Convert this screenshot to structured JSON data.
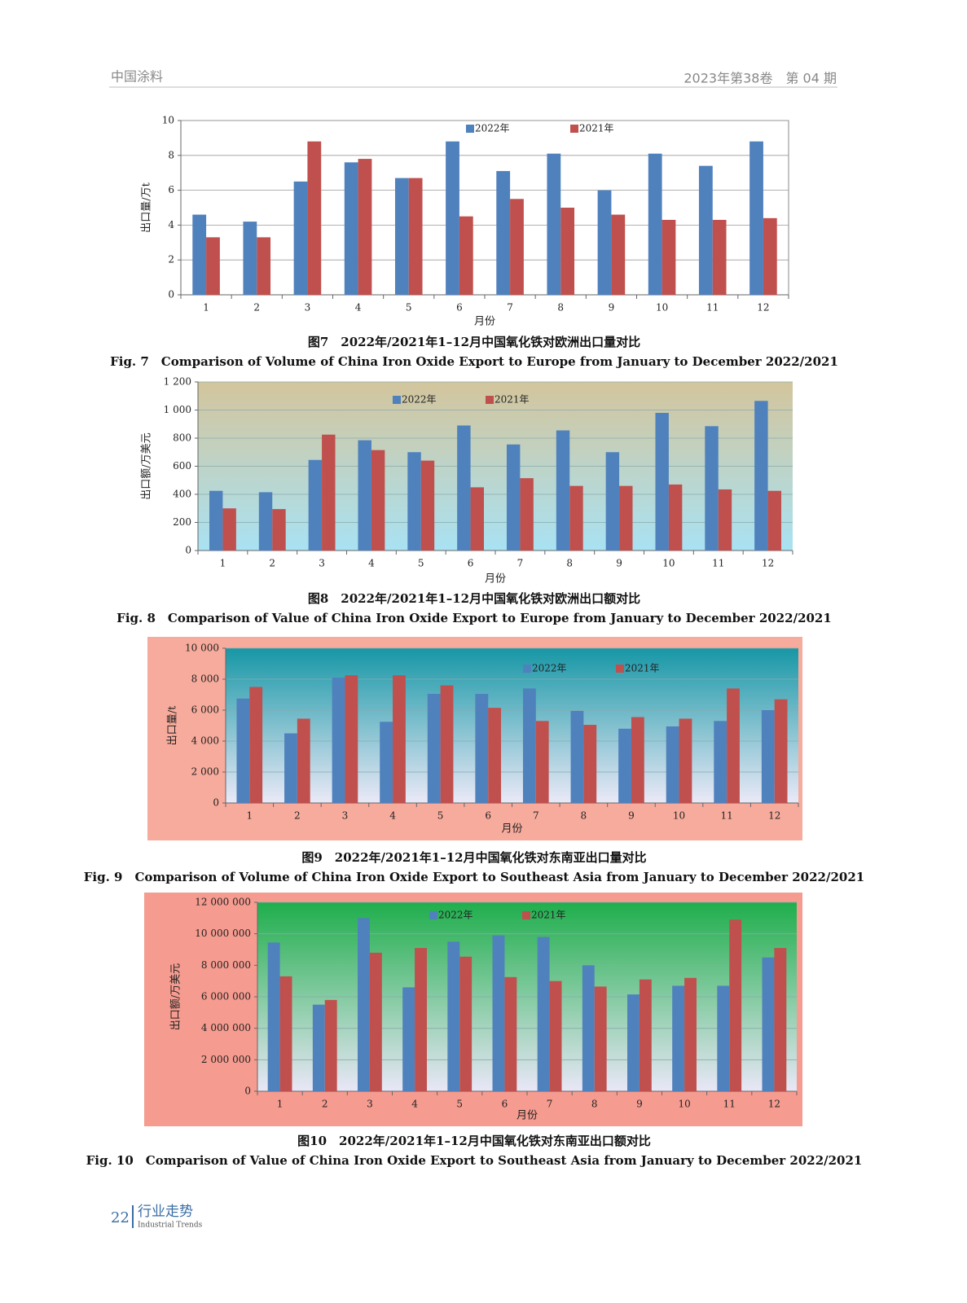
{
  "header": {
    "journal": "中国涂料",
    "issue": "2023年第38卷　第 04 期"
  },
  "footer": {
    "page": "22",
    "section": "行业走势",
    "section_en": "Industrial Trends"
  },
  "chart_data": [
    {
      "type": "bar",
      "caption_cn": "图7　2022年/2021年1–12月中国氧化铁对欧洲出口量对比",
      "caption_en": "Fig. 7　Comparison of Volume of China Iron Oxide Export to Europe from January to December 2022/2021",
      "y_label": "出口量/万t",
      "x_label": "月份",
      "categories": [
        "1",
        "2",
        "3",
        "4",
        "5",
        "6",
        "7",
        "8",
        "9",
        "10",
        "11",
        "12"
      ],
      "series": [
        {
          "name": "2022年",
          "color": "#4f81bd",
          "values": [
            4.6,
            4.2,
            6.5,
            7.6,
            6.7,
            8.8,
            7.1,
            8.1,
            6.0,
            8.1,
            7.4,
            8.8
          ]
        },
        {
          "name": "2021年",
          "color": "#c0504d",
          "values": [
            3.3,
            3.3,
            8.8,
            7.8,
            6.7,
            4.5,
            5.5,
            5.0,
            4.6,
            4.3,
            4.3,
            4.4
          ]
        }
      ],
      "ylim": [
        0,
        10
      ],
      "yticks": [
        0,
        2,
        4,
        6,
        8,
        10
      ],
      "grid": true,
      "legend": "top"
    },
    {
      "type": "bar",
      "caption_cn": "图8　2022年/2021年1–12月中国氧化铁对欧洲出口额对比",
      "caption_en": "Fig. 8　Comparison of Value of China Iron Oxide Export to Europe from January to December 2022/2021",
      "y_label": "出口额/万美元",
      "x_label": "月份",
      "categories": [
        "1",
        "2",
        "3",
        "4",
        "5",
        "6",
        "7",
        "8",
        "9",
        "10",
        "11",
        "12"
      ],
      "series": [
        {
          "name": "2022年",
          "color": "#4f81bd",
          "values": [
            425,
            415,
            645,
            785,
            700,
            890,
            755,
            855,
            700,
            980,
            885,
            1065
          ]
        },
        {
          "name": "2021年",
          "color": "#c0504d",
          "values": [
            300,
            295,
            825,
            715,
            640,
            450,
            515,
            460,
            460,
            470,
            435,
            425
          ]
        }
      ],
      "ylim": [
        0,
        1200
      ],
      "yticks": [
        0,
        200,
        400,
        600,
        800,
        {
          "value": 1000,
          "label": "1 000"
        },
        {
          "value": 1200,
          "label": "1 200"
        }
      ],
      "grid": true,
      "legend": "top"
    },
    {
      "type": "bar",
      "caption_cn": "图9　2022年/2021年1–12月中国氧化铁对东南亚出口量对比",
      "caption_en": "Fig. 9　Comparison of Volume of China Iron Oxide Export to Southeast Asia from January to December 2022/2021",
      "y_label": "出口量/t",
      "x_label": "月份",
      "categories": [
        "1",
        "2",
        "3",
        "4",
        "5",
        "6",
        "7",
        "8",
        "9",
        "10",
        "11",
        "12"
      ],
      "series": [
        {
          "name": "2022年",
          "color": "#4f81bd",
          "values": [
            6750,
            4500,
            8100,
            5250,
            7050,
            7050,
            7400,
            5950,
            4800,
            4950,
            5300,
            6000
          ]
        },
        {
          "name": "2021年",
          "color": "#c0504d",
          "values": [
            7500,
            5450,
            8250,
            8250,
            7600,
            6150,
            5300,
            5050,
            5550,
            5450,
            7400,
            6700
          ]
        }
      ],
      "ylim": [
        0,
        10000
      ],
      "yticks": [
        0,
        {
          "value": 2000,
          "label": "2 000"
        },
        {
          "value": 4000,
          "label": "4 000"
        },
        {
          "value": 6000,
          "label": "6 000"
        },
        {
          "value": 8000,
          "label": "8 000"
        },
        {
          "value": 10000,
          "label": "10 000"
        }
      ],
      "grid": true,
      "legend": "top"
    },
    {
      "type": "bar",
      "caption_cn": "图10　2022年/2021年1–12月中国氧化铁对东南亚出口额对比",
      "caption_en": "Fig. 10　Comparison of Value of China Iron Oxide Export to Southeast Asia from January to December 2022/2021",
      "y_label": "出口额/万美元",
      "x_label": "月份",
      "categories": [
        "1",
        "2",
        "3",
        "4",
        "5",
        "6",
        "7",
        "8",
        "9",
        "10",
        "11",
        "12"
      ],
      "series": [
        {
          "name": "2022年",
          "color": "#4f81bd",
          "values": [
            9450000,
            5500000,
            11000000,
            6600000,
            9500000,
            9900000,
            9800000,
            8000000,
            6150000,
            6700000,
            6700000,
            8500000
          ]
        },
        {
          "name": "2021年",
          "color": "#c0504d",
          "values": [
            7300000,
            5800000,
            8800000,
            9100000,
            8550000,
            7250000,
            7000000,
            6650000,
            7100000,
            7200000,
            10900000,
            9100000
          ]
        }
      ],
      "ylim": [
        0,
        12000000
      ],
      "yticks": [
        0,
        {
          "value": 2000000,
          "label": "2 000 000"
        },
        {
          "value": 4000000,
          "label": "4 000 000"
        },
        {
          "value": 6000000,
          "label": "6 000 000"
        },
        {
          "value": 8000000,
          "label": "8 000 000"
        },
        {
          "value": 10000000,
          "label": "10 000 000"
        },
        {
          "value": 12000000,
          "label": "12 000 000"
        }
      ],
      "grid": true,
      "legend": "top"
    }
  ]
}
